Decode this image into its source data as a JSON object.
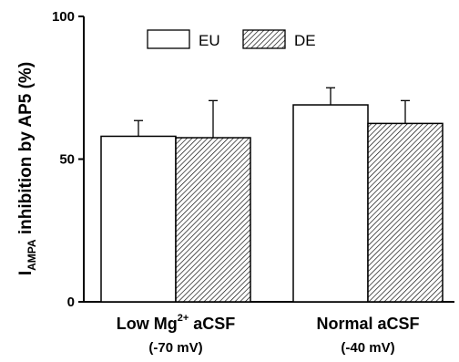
{
  "chart_data": {
    "type": "bar",
    "ylabel": {
      "main": "I",
      "sub": "AMPA",
      "rest": " inhibition by AP5 (%)"
    },
    "ylim": [
      0,
      100
    ],
    "yticks": [
      0,
      50,
      100
    ],
    "categories": [
      {
        "main": "Low Mg",
        "sup": "2+",
        "rest": " aCSF",
        "sub": "(-70 mV)"
      },
      {
        "main": "Normal  aCSF",
        "sup": "",
        "rest": "",
        "sub": "(-40 mV)"
      }
    ],
    "series": [
      {
        "name": "EU",
        "fill": "#ffffff",
        "pattern": "none",
        "values": [
          58,
          69
        ],
        "errors": [
          5.5,
          6
        ]
      },
      {
        "name": "DE",
        "fill": "#ffffff",
        "pattern": "diagonal-hatch",
        "values": [
          57.5,
          62.5
        ],
        "errors": [
          13,
          8
        ]
      }
    ],
    "legend_position": "top-center",
    "grid": false
  }
}
